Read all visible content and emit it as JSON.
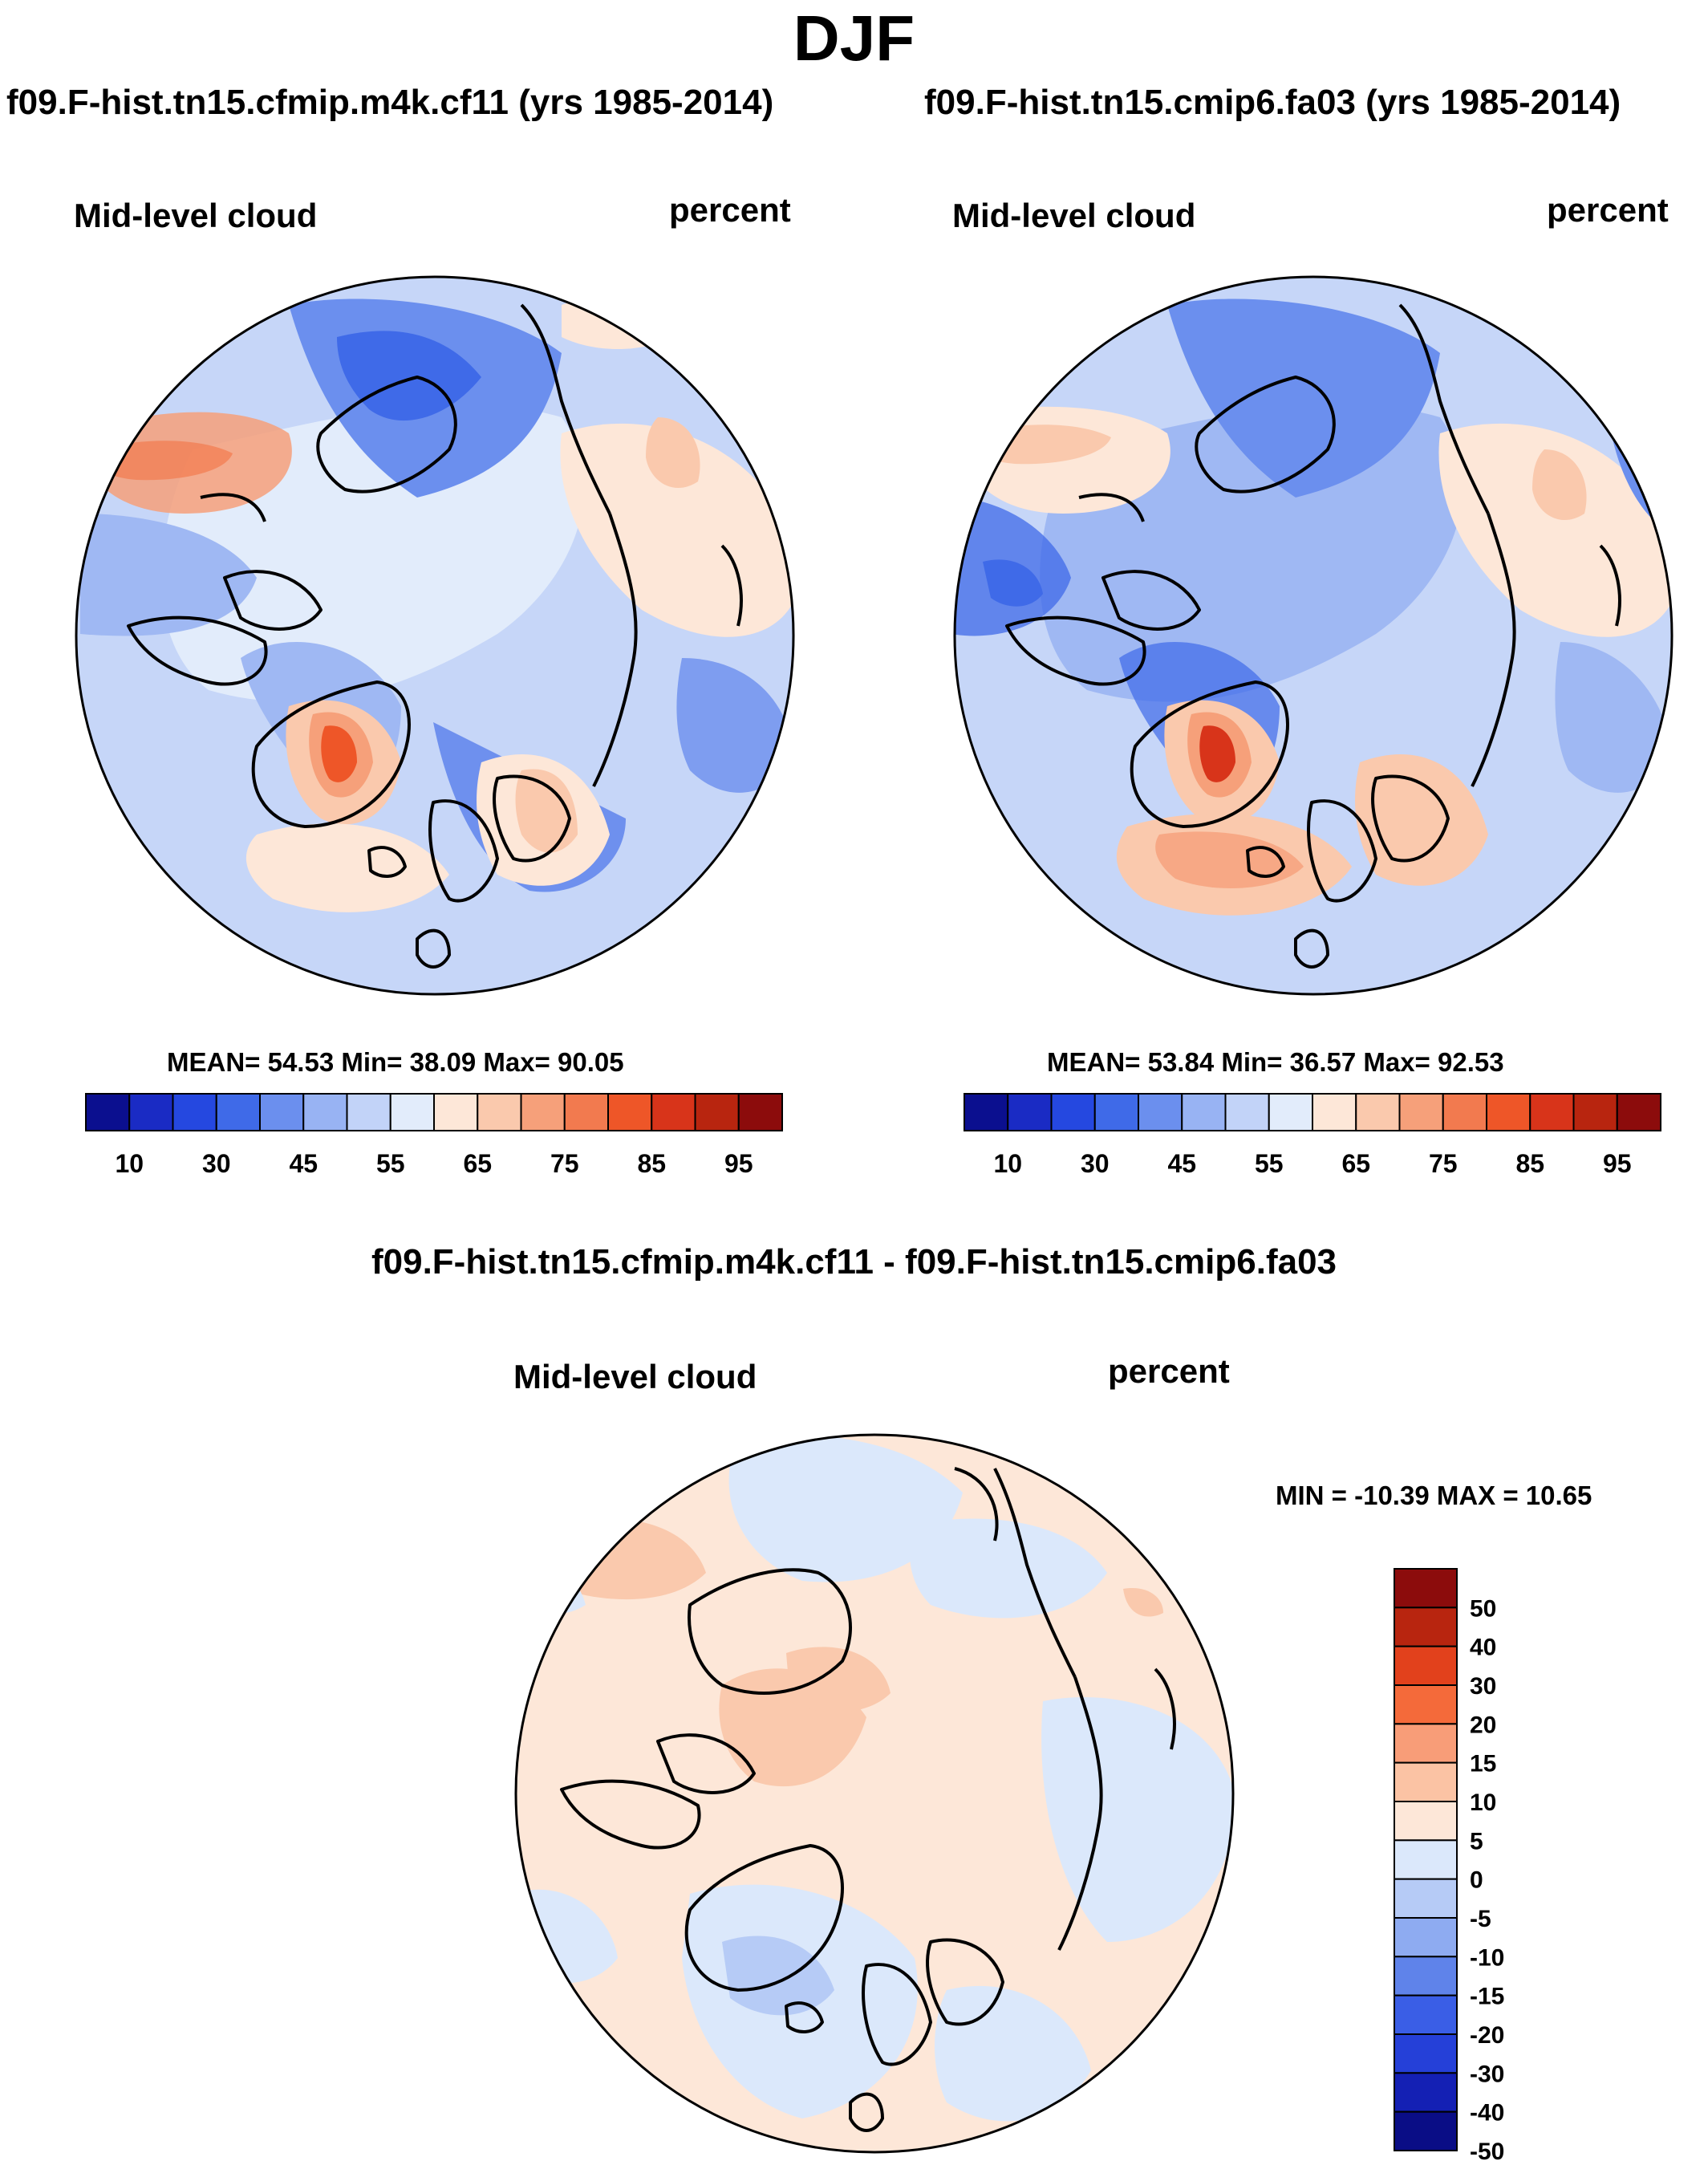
{
  "title": "DJF",
  "panels": [
    {
      "heading": "f09.F-hist.tn15.cfmip.m4k.cf11 (yrs 1985-2014)",
      "field": "Mid-level cloud",
      "units": "percent",
      "stats": "MEAN=  54.53  Min=  38.09  Max=  90.05"
    },
    {
      "heading": "f09.F-hist.tn15.cmip6.fa03 (yrs 1985-2014)",
      "field": "Mid-level cloud",
      "units": "percent",
      "stats": "MEAN=  53.84  Min=  36.57  Max=  92.53"
    }
  ],
  "difference": {
    "heading": "f09.F-hist.tn15.cfmip.m4k.cf11 - f09.F-hist.tn15.cmip6.fa03",
    "field": "Mid-level cloud",
    "units": "percent",
    "stats": "MIN = -10.39 MAX =  10.65"
  },
  "colorbar_abs": {
    "colors": [
      "#0b0f8f",
      "#1a2bc4",
      "#2548e0",
      "#3f6ae8",
      "#6b8fee",
      "#98b3f3",
      "#c2d3f8",
      "#e2ecfb",
      "#fde7d8",
      "#fac9ad",
      "#f6a07a",
      "#f27a4f",
      "#ee5628",
      "#d8341a",
      "#b8250f",
      "#8c0c0c"
    ],
    "labels": [
      "10",
      "30",
      "45",
      "55",
      "65",
      "75",
      "85",
      "95"
    ]
  },
  "colorbar_diff": {
    "colors": [
      "#8c0c0c",
      "#b8250f",
      "#e2411c",
      "#f46a3a",
      "#f89d78",
      "#fbc3a4",
      "#fde7d8",
      "#dbe8fb",
      "#b6cbf6",
      "#8eabf1",
      "#5f83ea",
      "#3a5ee6",
      "#2540d8",
      "#1420b4",
      "#0a0d86"
    ],
    "labels": [
      "50",
      "40",
      "30",
      "20",
      "15",
      "10",
      "5",
      "0",
      "-5",
      "-10",
      "-15",
      "-20",
      "-30",
      "-40",
      "-50"
    ]
  },
  "map_colors": {
    "sea_blue": "#c6d6f8",
    "mid_blue": "#9fb8f3",
    "deep_blue": "#6b8fee",
    "darker_blue": "#3f6ae8",
    "light_blue": "#e2ecfb",
    "peach": "#fde7d8",
    "salmon": "#fac9ad",
    "orange": "#f6a07a",
    "red": "#ee5628",
    "darkred": "#d8341a",
    "coast": "#000000"
  }
}
